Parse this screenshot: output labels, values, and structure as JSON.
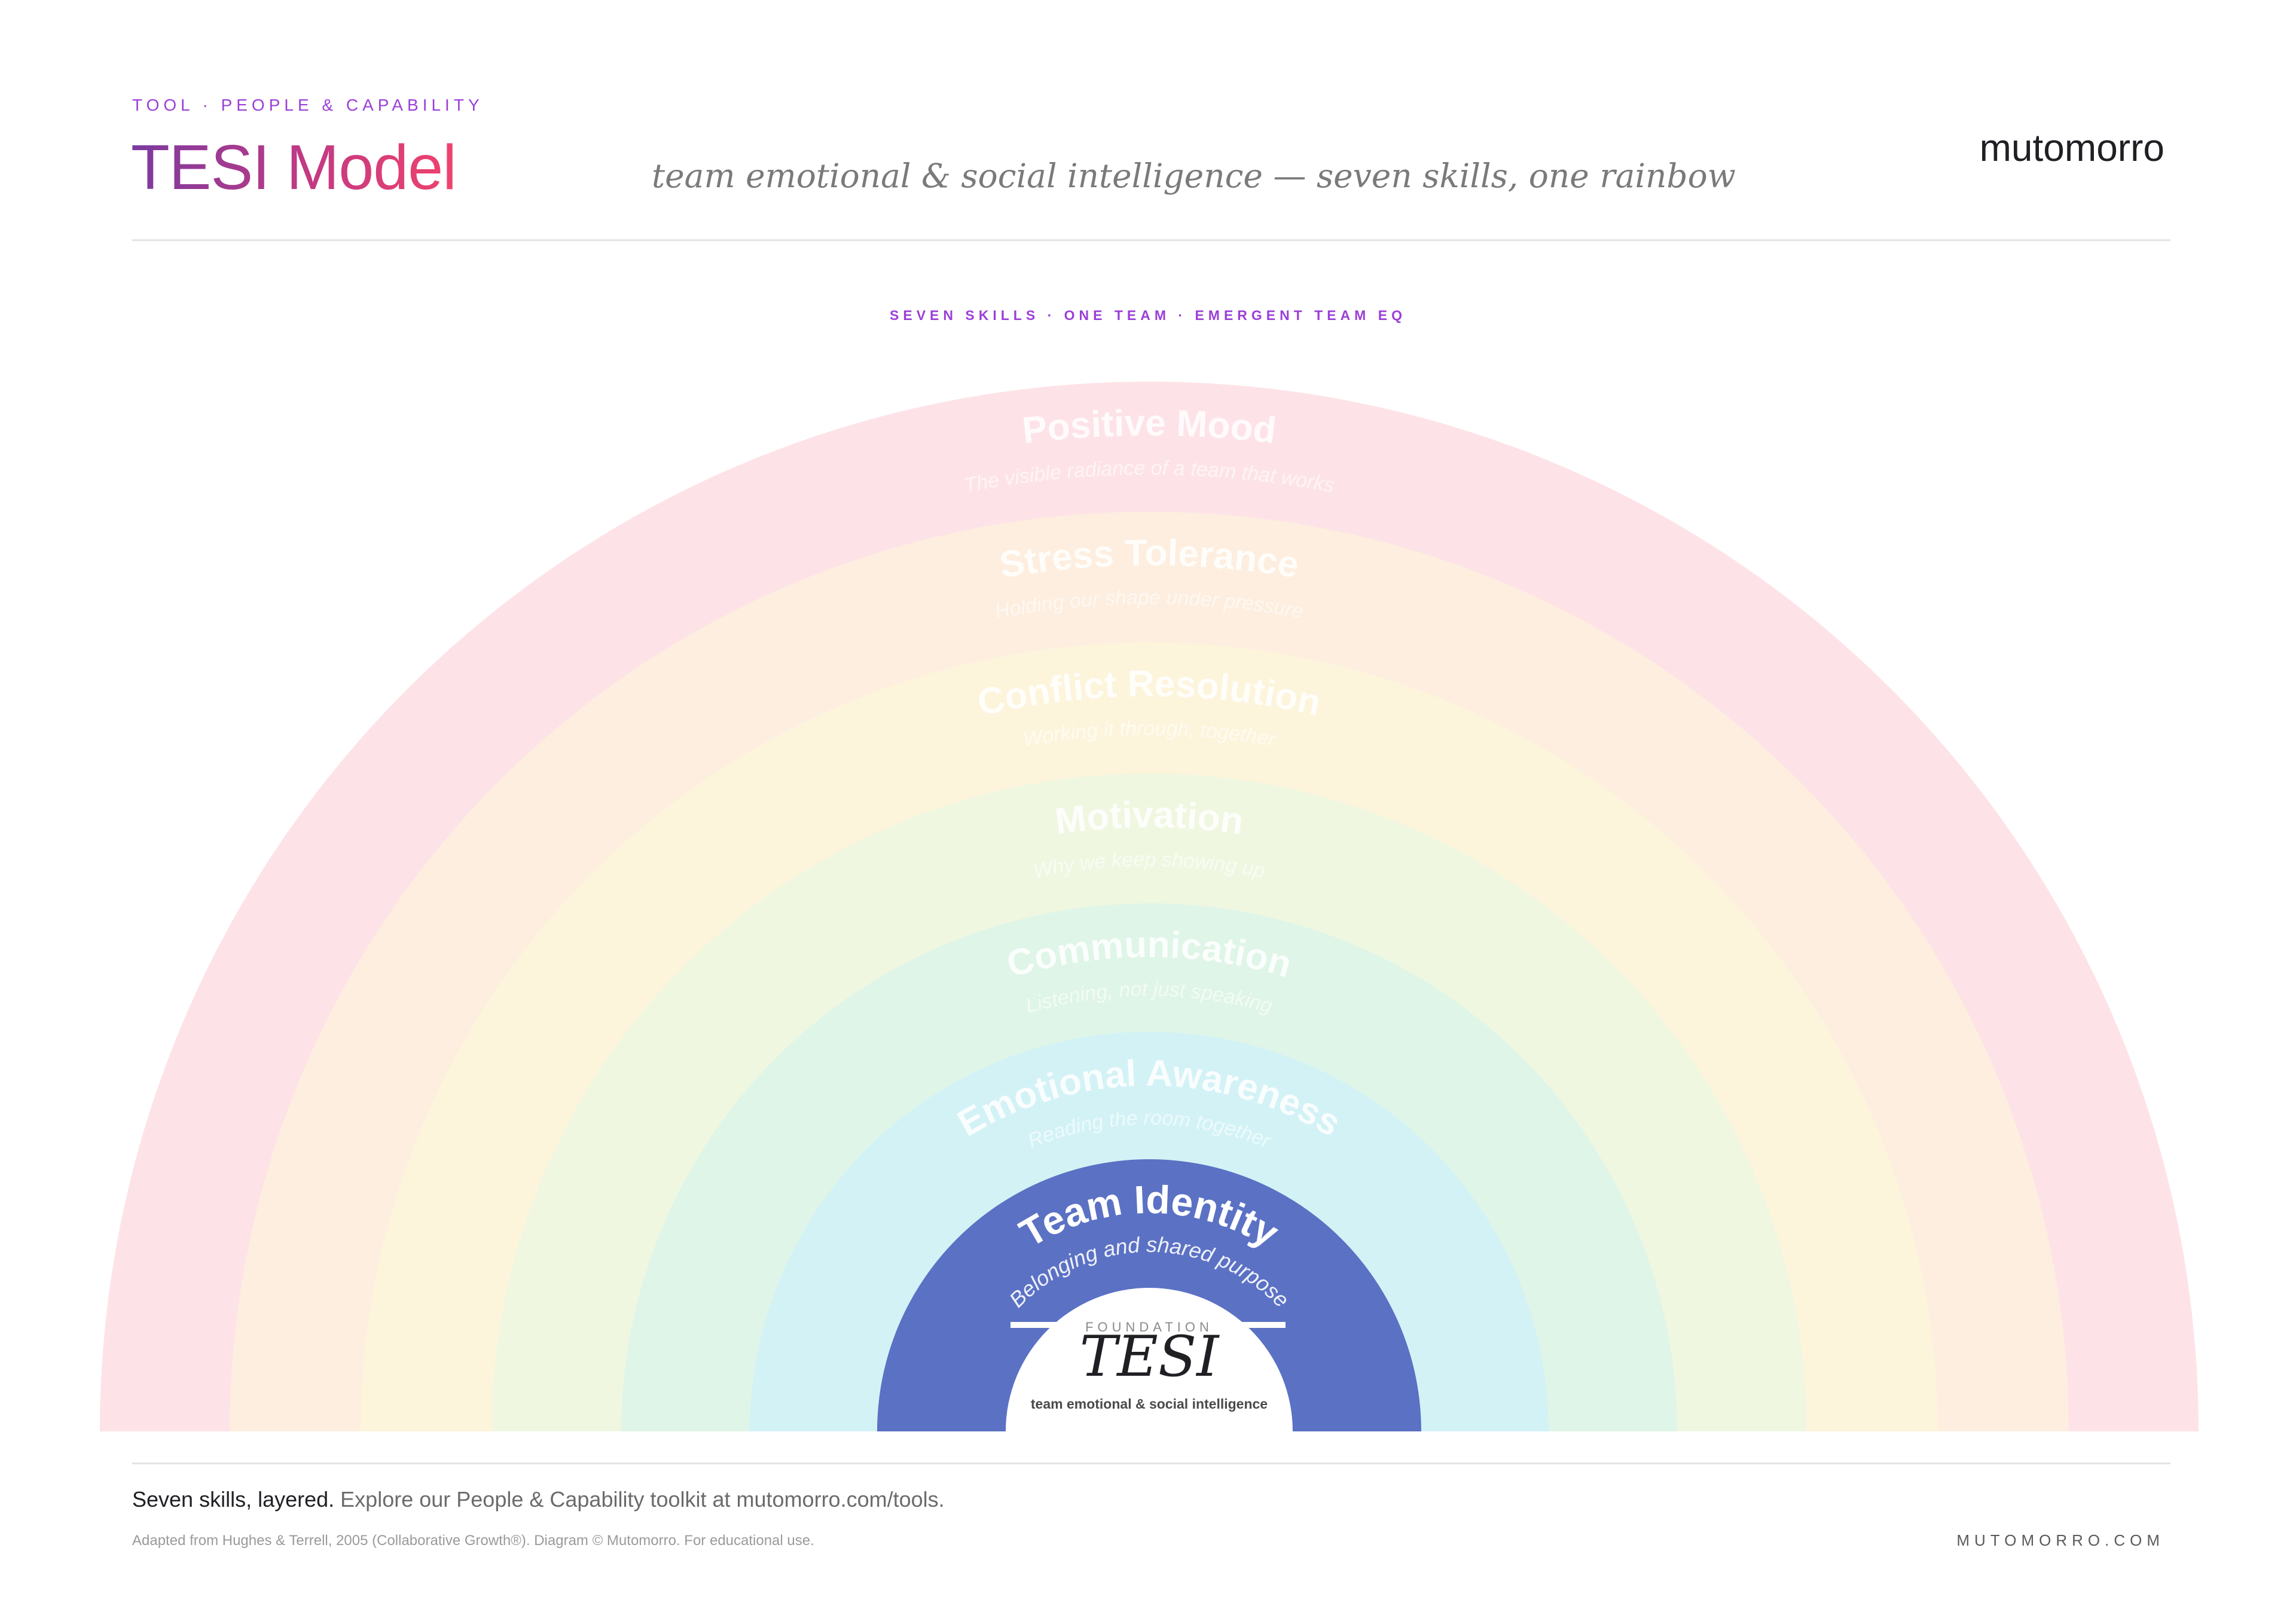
{
  "header": {
    "eyebrow": "TOOL · PEOPLE & CAPABILITY",
    "title": "TESI Model",
    "subtitle": "team emotional & social intelligence — seven skills, one rainbow",
    "brand": "mutomorro"
  },
  "diagram": {
    "caption": "SEVEN SKILLS · ONE TEAM · EMERGENT TEAM EQ",
    "bands": [
      {
        "title": "Positive Mood",
        "subtitle": "The visible radiance of a team that works",
        "color": "#fde3e7"
      },
      {
        "title": "Stress Tolerance",
        "subtitle": "Holding our shape under pressure",
        "color": "#fdeedf"
      },
      {
        "title": "Conflict Resolution",
        "subtitle": "Working it through, together",
        "color": "#fdf4dc"
      },
      {
        "title": "Motivation",
        "subtitle": "Why we keep showing up",
        "color": "#eff7e1"
      },
      {
        "title": "Communication",
        "subtitle": "Listening, not just speaking",
        "color": "#dff5e7"
      },
      {
        "title": "Emotional Awareness",
        "subtitle": "Reading the room together",
        "color": "#d3f2f6"
      },
      {
        "title": "Team Identity",
        "subtitle": "Belonging and shared purpose",
        "color": "#5b71c4"
      }
    ],
    "center": {
      "kicker": "FOUNDATION",
      "title": "TESI",
      "caption": "team emotional & social intelligence"
    }
  },
  "footer": {
    "lead": "Seven skills, layered.",
    "text": "Explore our People & Capability toolkit at mutomorro.com/tools.",
    "credit": "Adapted from Hughes & Terrell, 2005 (Collaborative Growth®). Diagram © Mutomorro. For educational use.",
    "site": "MUTOMORRO.COM"
  }
}
